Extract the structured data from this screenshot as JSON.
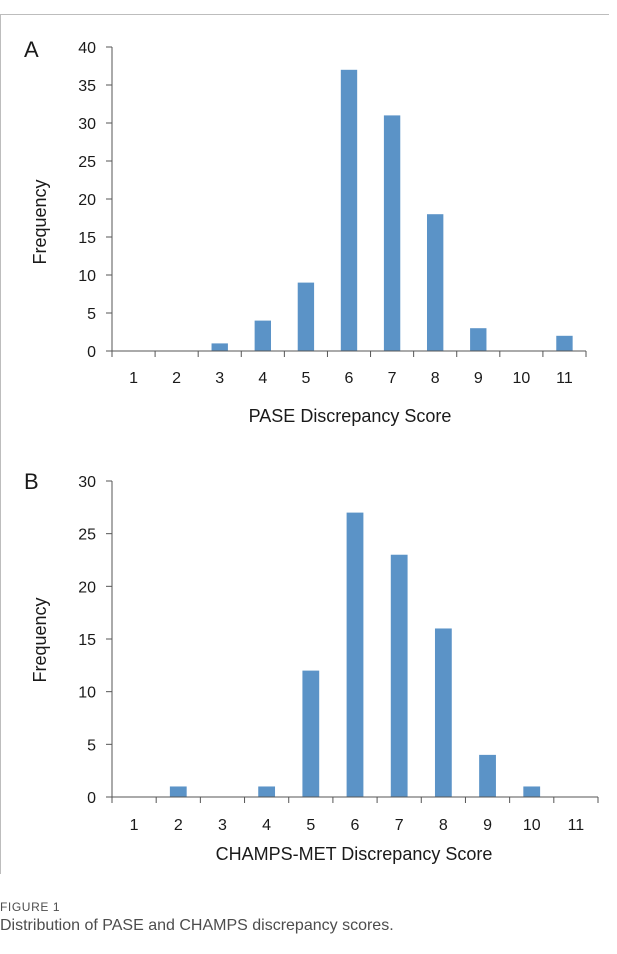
{
  "figure": {
    "label": "FIGURE 1",
    "caption": "Distribution of PASE and CHAMPS discrepancy scores."
  },
  "colors": {
    "bar": "#5b93c7",
    "axis": "#555555"
  },
  "chart_data": [
    {
      "type": "bar",
      "panel": "A",
      "categories": [
        "1",
        "2",
        "3",
        "4",
        "5",
        "6",
        "7",
        "8",
        "9",
        "10",
        "11"
      ],
      "values": [
        0,
        0,
        1,
        4,
        9,
        37,
        31,
        18,
        3,
        0,
        2
      ],
      "xlabel": "PASE Discrepancy Score",
      "ylabel": "Frequency",
      "ylim": [
        0,
        40
      ],
      "yticks": [
        0,
        5,
        10,
        15,
        20,
        25,
        30,
        35,
        40
      ],
      "grid": false,
      "legend": "none"
    },
    {
      "type": "bar",
      "panel": "B",
      "categories": [
        "1",
        "2",
        "3",
        "4",
        "5",
        "6",
        "7",
        "8",
        "9",
        "10",
        "11"
      ],
      "values": [
        0,
        1,
        0,
        1,
        12,
        27,
        23,
        16,
        4,
        1,
        0
      ],
      "xlabel": "CHAMPS-MET Discrepancy Score",
      "ylabel": "Frequency",
      "ylim": [
        0,
        30
      ],
      "yticks": [
        0,
        5,
        10,
        15,
        20,
        25,
        30
      ],
      "grid": false,
      "legend": "none"
    }
  ]
}
